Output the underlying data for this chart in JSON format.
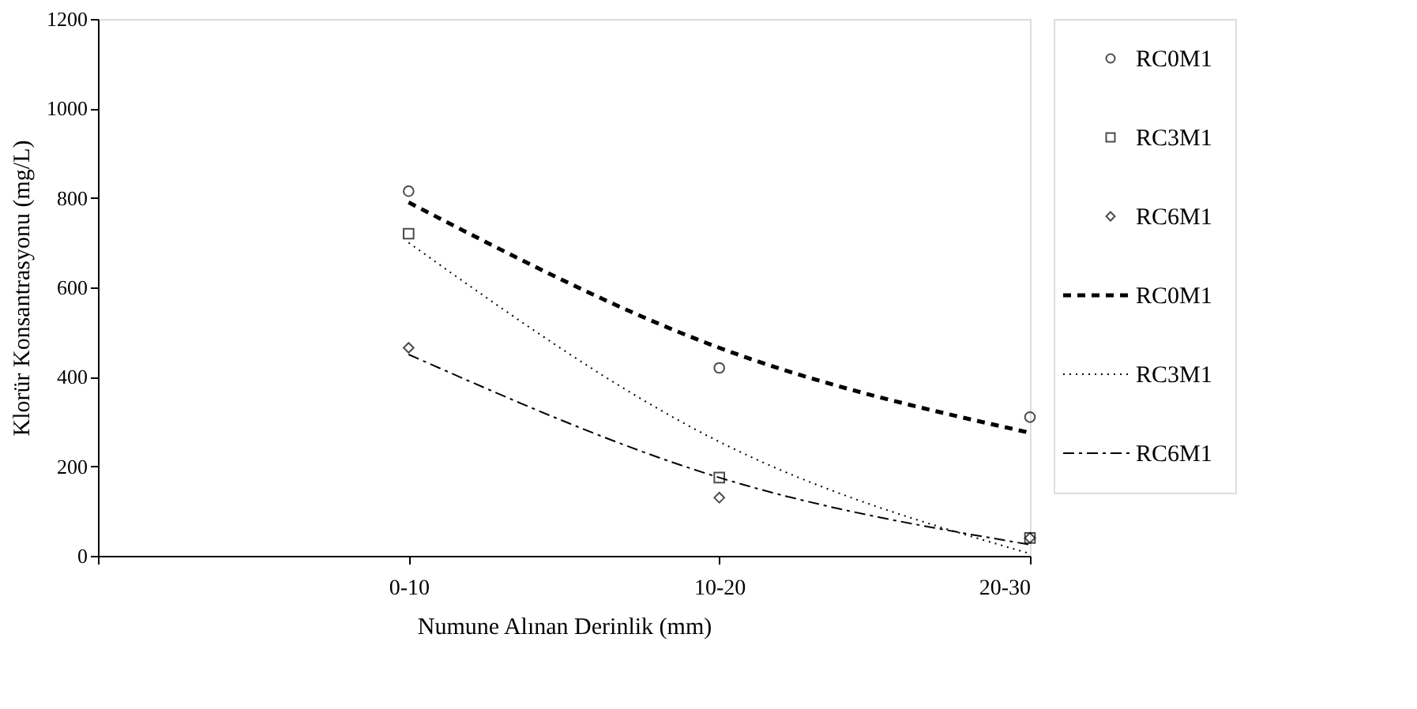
{
  "chart_data": {
    "type": "scatter",
    "xlabel": "Numune Alınan Derinlik (mm)",
    "ylabel": "Klorür Konsantrasyonu (mg/L)",
    "categories": [
      "0-10",
      "10-20",
      "20-30"
    ],
    "ylim": [
      0,
      1200
    ],
    "yticks": [
      0,
      200,
      400,
      600,
      800,
      1000,
      1200
    ],
    "grid": false,
    "legend": "right",
    "series": [
      {
        "name": "RC0M1",
        "marker": "circle",
        "color": "#000000",
        "values": [
          815,
          420,
          310
        ]
      },
      {
        "name": "RC3M1",
        "marker": "square",
        "color": "#000000",
        "values": [
          720,
          175,
          40
        ]
      },
      {
        "name": "RC6M1",
        "marker": "diamond",
        "color": "#000000",
        "values": [
          465,
          130,
          40
        ]
      },
      {
        "name": "RC0M1",
        "type": "line",
        "line_style": "dashed",
        "color": "#000000",
        "values": [
          790,
          465,
          275
        ]
      },
      {
        "name": "RC3M1",
        "type": "line",
        "line_style": "dotted",
        "color": "#000000",
        "values": [
          700,
          255,
          5
        ]
      },
      {
        "name": "RC6M1",
        "type": "line",
        "line_style": "dashdot",
        "color": "#000000",
        "values": [
          450,
          175,
          25
        ]
      }
    ]
  }
}
